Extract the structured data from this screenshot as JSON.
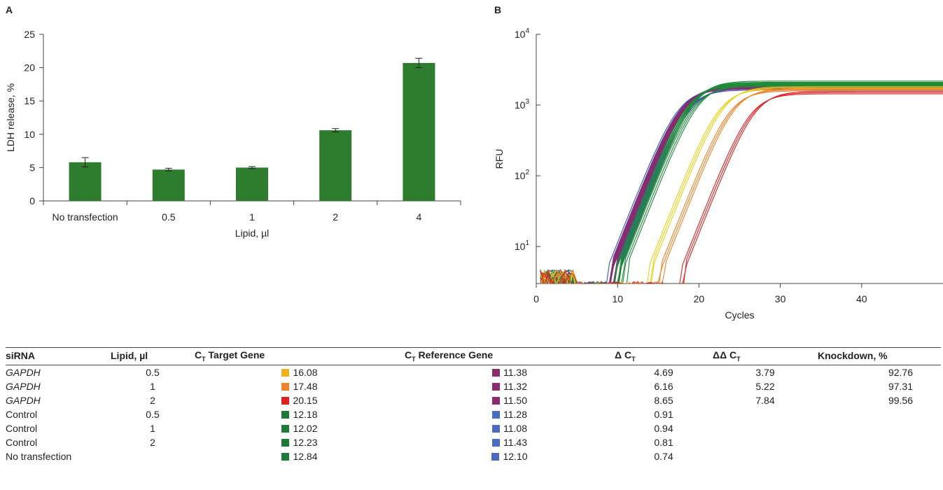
{
  "panels": {
    "a": "A",
    "b": "B"
  },
  "chart_data": [
    {
      "type": "bar",
      "categories": [
        "No transfection",
        "0.5",
        "1",
        "2",
        "4"
      ],
      "values": [
        5.8,
        4.7,
        5.0,
        10.6,
        20.7
      ],
      "errors": [
        0.7,
        0.2,
        0.15,
        0.25,
        0.7
      ],
      "xlabel": "Lipid, µl",
      "ylabel": "LDH release, %",
      "ylim": [
        0,
        25
      ],
      "yticks": [
        "0",
        "5",
        "10",
        "15",
        "20",
        "25"
      ],
      "bar_color": "#2e7d2e",
      "grid": false
    },
    {
      "type": "line",
      "xlabel": "Cycles",
      "ylabel": "RFU",
      "xlim": [
        0,
        50
      ],
      "xticks": [
        "0",
        "10",
        "20",
        "30",
        "40"
      ],
      "yscale": "log",
      "ylim": [
        3,
        10000
      ],
      "ytick_base": "10",
      "ytick_exps": [
        "1",
        "2",
        "3",
        "4"
      ],
      "grid": false,
      "series": [
        {
          "color": "#3b4fb0",
          "ct": 11.28,
          "plateau": 1800,
          "count": 3
        },
        {
          "color": "#3b4fb0",
          "ct": 11.08,
          "plateau": 1750,
          "count": 3
        },
        {
          "color": "#3b4fb0",
          "ct": 11.43,
          "plateau": 1850,
          "count": 3
        },
        {
          "color": "#3b4fb0",
          "ct": 12.1,
          "plateau": 1700,
          "count": 3
        },
        {
          "color": "#8e2a6e",
          "ct": 11.38,
          "plateau": 1800,
          "count": 3
        },
        {
          "color": "#8e2a6e",
          "ct": 11.32,
          "plateau": 1750,
          "count": 3
        },
        {
          "color": "#8e2a6e",
          "ct": 11.5,
          "plateau": 1850,
          "count": 3
        },
        {
          "color": "#1f8a3a",
          "ct": 12.18,
          "plateau": 2000,
          "count": 3
        },
        {
          "color": "#1f8a3a",
          "ct": 12.02,
          "plateau": 1950,
          "count": 3
        },
        {
          "color": "#1f8a3a",
          "ct": 12.23,
          "plateau": 2100,
          "count": 3
        },
        {
          "color": "#1f8a3a",
          "ct": 12.84,
          "plateau": 1900,
          "count": 3
        },
        {
          "color": "#e8d21a",
          "ct": 16.08,
          "plateau": 1750,
          "count": 3
        },
        {
          "color": "#f08228",
          "ct": 17.48,
          "plateau": 1650,
          "count": 3
        },
        {
          "color": "#e02020",
          "ct": 20.15,
          "plateau": 1500,
          "count": 3
        }
      ]
    },
    {
      "type": "table",
      "headers": {
        "sirna": "siRNA",
        "lipid": "Lipid, µl",
        "ct_target": "C",
        "ct_target_sub": "T",
        "ct_target_rest": " Target Gene",
        "ct_ref": "C",
        "ct_ref_sub": "T",
        "ct_ref_rest": " Reference Gene",
        "dct": "Δ C",
        "dct_sub": "T",
        "ddct": "ΔΔ C",
        "ddct_sub": "T",
        "knockdown": "Knockdown, %"
      },
      "rows": [
        {
          "sirna": "GAPDH",
          "italic": true,
          "lipid": "0.5",
          "target": "16.08",
          "target_color": "#f5b21b",
          "ref": "11.38",
          "ref_color": "#8e2a6e",
          "dct": "4.69",
          "ddct": "3.79",
          "kd": "92.76"
        },
        {
          "sirna": "GAPDH",
          "italic": true,
          "lipid": "1",
          "target": "17.48",
          "target_color": "#f08228",
          "ref": "11.32",
          "ref_color": "#8e2a6e",
          "dct": "6.16",
          "ddct": "5.22",
          "kd": "97.31"
        },
        {
          "sirna": "GAPDH",
          "italic": true,
          "lipid": "2",
          "target": "20.15",
          "target_color": "#e02020",
          "ref": "11.50",
          "ref_color": "#8e2a6e",
          "dct": "8.65",
          "ddct": "7.84",
          "kd": "99.56"
        },
        {
          "sirna": "Control",
          "italic": false,
          "lipid": "0.5",
          "target": "12.18",
          "target_color": "#1f7a3a",
          "ref": "11.28",
          "ref_color": "#4a6cc0",
          "dct": "0.91",
          "ddct": "",
          "kd": ""
        },
        {
          "sirna": "Control",
          "italic": false,
          "lipid": "1",
          "target": "12.02",
          "target_color": "#1f7a3a",
          "ref": "11.08",
          "ref_color": "#4a6cc0",
          "dct": "0.94",
          "ddct": "",
          "kd": ""
        },
        {
          "sirna": "Control",
          "italic": false,
          "lipid": "2",
          "target": "12.23",
          "target_color": "#1f7a3a",
          "ref": "11.43",
          "ref_color": "#4a6cc0",
          "dct": "0.81",
          "ddct": "",
          "kd": ""
        },
        {
          "sirna": "No transfection",
          "italic": false,
          "lipid": "",
          "target": "12.84",
          "target_color": "#1f7a3a",
          "ref": "12.10",
          "ref_color": "#4a6cc0",
          "dct": "0.74",
          "ddct": "",
          "kd": ""
        }
      ]
    }
  ]
}
